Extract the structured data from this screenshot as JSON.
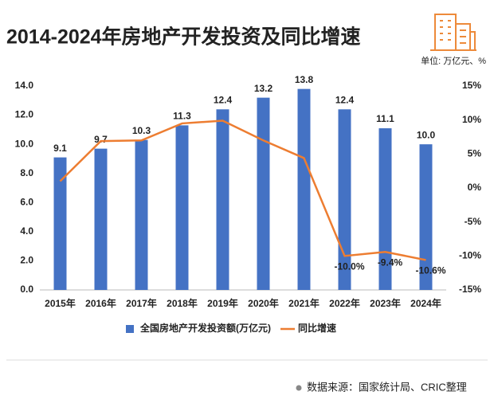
{
  "chart_data": {
    "type": "bar",
    "title": "2014-2024年房地产开发投资及同比增速",
    "unit_note": "单位: 万亿元、%",
    "source": "数据来源：国家统计局、CRIC整理",
    "categories": [
      "2015年",
      "2016年",
      "2017年",
      "2018年",
      "2019年",
      "2020年",
      "2021年",
      "2022年",
      "2023年",
      "2024年"
    ],
    "series": [
      {
        "name": "全国房地产开发投资额(万亿元)",
        "type": "bar",
        "color": "#4472c4",
        "values": [
          9.1,
          9.7,
          10.3,
          11.3,
          12.4,
          13.2,
          13.8,
          12.4,
          11.1,
          10.0
        ],
        "value_labels": [
          "9.1",
          "9.7",
          "10.3",
          "11.3",
          "12.4",
          "13.2",
          "13.8",
          "12.4",
          "11.1",
          "10.0"
        ]
      },
      {
        "name": "同比增速",
        "type": "line",
        "axis": "y2",
        "color": "#ed7d31",
        "values": [
          1.0,
          6.9,
          7.0,
          9.5,
          9.9,
          7.0,
          4.4,
          -10.0,
          -9.4,
          -10.6
        ],
        "value_labels": [
          null,
          null,
          null,
          null,
          null,
          null,
          null,
          "-10.0%",
          "-9.4%",
          "-10.6%"
        ]
      }
    ],
    "ylim": [
      0,
      14
    ],
    "yticks": [
      {
        "value": 0,
        "label": "0.0"
      },
      {
        "value": 2,
        "label": "2.0"
      },
      {
        "value": 4,
        "label": "4.0"
      },
      {
        "value": 6,
        "label": "6.0"
      },
      {
        "value": 8,
        "label": "8.0"
      },
      {
        "value": 10,
        "label": "10.0"
      },
      {
        "value": 12,
        "label": "12.0"
      },
      {
        "value": 14,
        "label": "14.0"
      }
    ],
    "y2lim": [
      -15,
      15
    ],
    "y2ticks": [
      {
        "value": -15,
        "label": "-15%"
      },
      {
        "value": -10,
        "label": "-10%"
      },
      {
        "value": -5,
        "label": "-5%"
      },
      {
        "value": 0,
        "label": "0%"
      },
      {
        "value": 5,
        "label": "5%"
      },
      {
        "value": 10,
        "label": "10%"
      },
      {
        "value": 15,
        "label": "15%"
      }
    ],
    "grid": false,
    "legend": "bottom"
  }
}
